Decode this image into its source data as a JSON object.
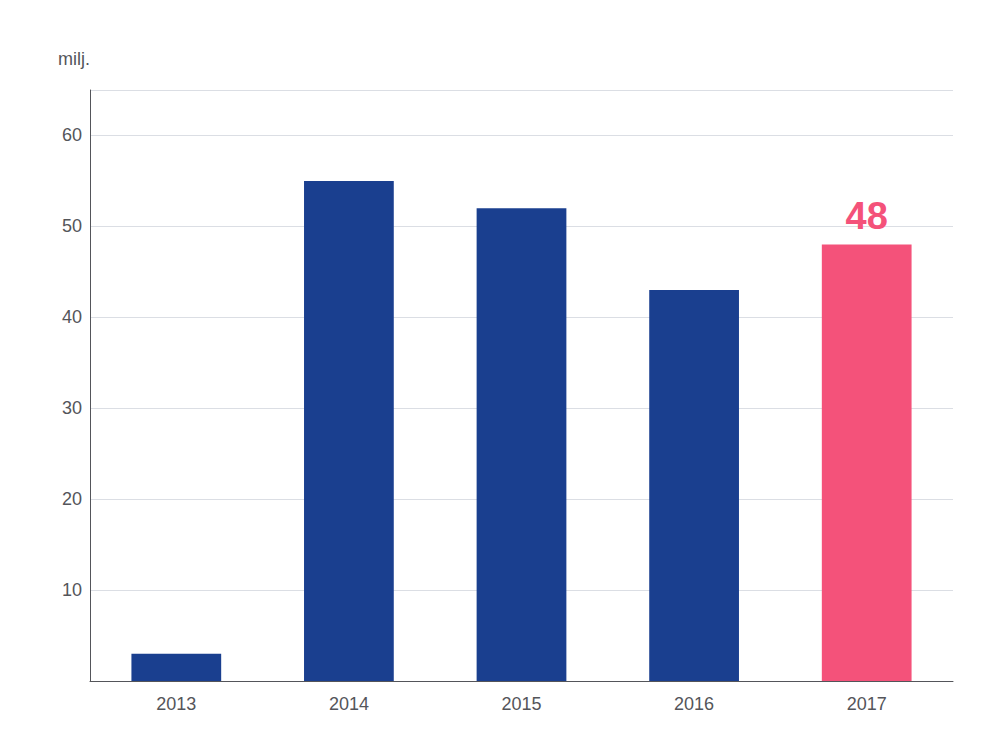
{
  "chart_data": {
    "type": "bar",
    "ylabel": "milj.",
    "categories": [
      "2013",
      "2014",
      "2015",
      "2016",
      "2017"
    ],
    "values": [
      3,
      55,
      52,
      43,
      48
    ],
    "colors": [
      "#1a3f8f",
      "#1a3f8f",
      "#1a3f8f",
      "#1a3f8f",
      "#f4527a"
    ],
    "annotations": [
      {
        "text": "48",
        "x": "2017",
        "y": 48,
        "color": "#f4527a"
      }
    ],
    "ylim": [
      0,
      65
    ],
    "yticks": [
      10,
      20,
      30,
      40,
      50,
      60
    ],
    "grid": true
  }
}
